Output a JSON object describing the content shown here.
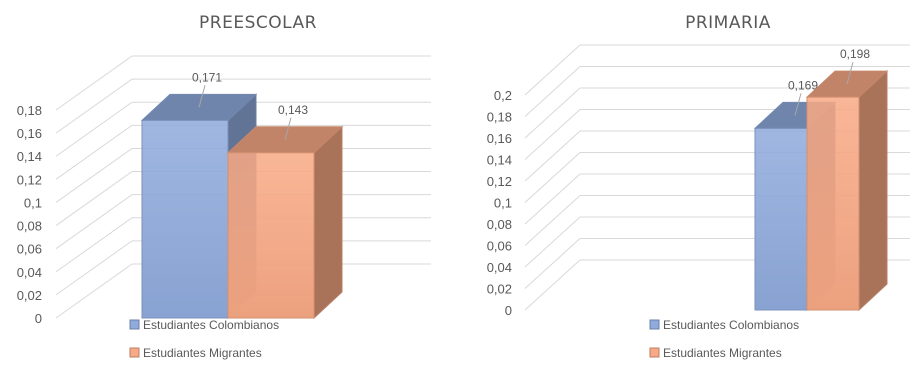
{
  "chart_data": [
    {
      "type": "bar",
      "title": "PREESCOLAR",
      "categories": [
        ""
      ],
      "series": [
        {
          "name": "Estudiantes Colombianos",
          "values": [
            0.171
          ],
          "labels": [
            "0,171"
          ],
          "color": "#8faadc"
        },
        {
          "name": "Estudiantes Migrantes",
          "values": [
            0.143
          ],
          "labels": [
            "0,143"
          ],
          "color": "#f8a985"
        }
      ],
      "ylim": [
        0,
        0.18
      ],
      "yticks": [
        "0",
        "0,02",
        "0,04",
        "0,06",
        "0,08",
        "0,1",
        "0,12",
        "0,14",
        "0,16",
        "0,18"
      ],
      "grid": true,
      "legend": "bottom",
      "style": "3d-column"
    },
    {
      "type": "bar",
      "title": "PRIMARIA",
      "categories": [
        ""
      ],
      "series": [
        {
          "name": "Estudiantes Colombianos",
          "values": [
            0.169
          ],
          "labels": [
            "0,169"
          ],
          "color": "#8faadc"
        },
        {
          "name": "Estudiantes Migrantes",
          "values": [
            0.198
          ],
          "labels": [
            "0,198"
          ],
          "color": "#f8a985"
        }
      ],
      "ylim": [
        0,
        0.2
      ],
      "yticks": [
        "0",
        "0,02",
        "0,04",
        "0,06",
        "0,08",
        "0,1",
        "0,12",
        "0,14",
        "0,16",
        "0,18",
        "0,2"
      ],
      "grid": true,
      "legend": "bottom",
      "style": "3d-column"
    }
  ]
}
